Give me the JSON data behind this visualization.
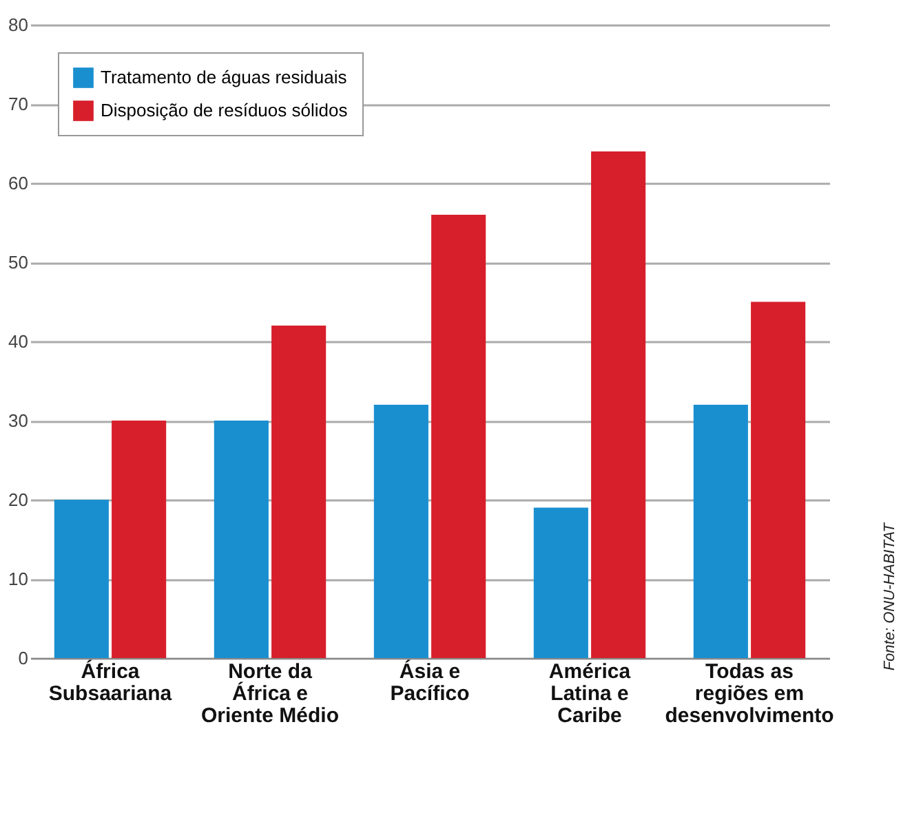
{
  "chart_data": {
    "type": "bar",
    "categories": [
      "África Subsaariana",
      "Norte da África e Oriente Médio",
      "Ásia e Pacífico",
      "América Latina e Caribe",
      "Todas as regiões em desenvolvimento"
    ],
    "series": [
      {
        "name": "Tratamento de águas residuais",
        "color": "#1a8fd0",
        "values": [
          20,
          30,
          32,
          19,
          32
        ]
      },
      {
        "name": "Disposição de resíduos sólidos",
        "color": "#d71f2b",
        "values": [
          30,
          42,
          56,
          64,
          45
        ]
      }
    ],
    "ylim": [
      0,
      80
    ],
    "yticks": [
      0,
      10,
      20,
      30,
      40,
      50,
      60,
      70,
      80
    ],
    "grid": "y",
    "legend": "top left",
    "annotations": [
      "Fonte: ONU-HABITAT"
    ]
  }
}
